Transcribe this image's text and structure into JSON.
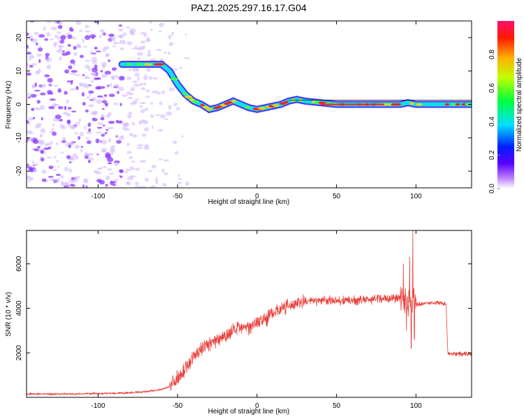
{
  "title": "PAZ1.2025.297.16.17.G04",
  "colors": {
    "snr_line": "#e8403a",
    "ridge_low": "#3a18ff",
    "ridge_mid": "#10e0e0",
    "ridge_high": "#ff2020",
    "noise": "#8a38ff",
    "noise_light": "#d2b4ff",
    "axis": "#000000"
  },
  "chart_data": [
    {
      "type": "heatmap",
      "name": "spectrogram",
      "xlabel": "Height of straight line (km)",
      "ylabel": "Frequency (Hz)",
      "xlim": [
        -145,
        135
      ],
      "ylim": [
        -25,
        25
      ],
      "xticks": [
        -100,
        -50,
        0,
        50,
        100
      ],
      "yticks": [
        -20,
        -10,
        0,
        10,
        20
      ],
      "grid": false,
      "colorbar": {
        "label": "Normalized spectral amplitude",
        "range": [
          0,
          1
        ],
        "ticks": [
          0.0,
          0.2,
          0.4,
          0.6,
          0.8
        ],
        "tick_labels": [
          "0.0",
          "0.2",
          "0.4",
          "0.6",
          "0.8"
        ],
        "placement": "right"
      },
      "ridge": {
        "description": "dominant frequency trace",
        "x": [
          -85,
          -60,
          -55,
          -50,
          -45,
          -40,
          -35,
          -30,
          -25,
          -20,
          -15,
          -10,
          -5,
          0,
          5,
          10,
          15,
          20,
          25,
          30,
          40,
          50,
          60,
          70,
          80,
          90,
          95,
          100,
          110,
          120,
          135
        ],
        "y": [
          12,
          12,
          10,
          6,
          3,
          1,
          0,
          -1.5,
          -1,
          0,
          1,
          0,
          -1,
          -1.5,
          -1,
          -0.5,
          0,
          1,
          1.5,
          1,
          0.5,
          0,
          0,
          0,
          0,
          0,
          0.5,
          0,
          0,
          0,
          0
        ]
      },
      "noise_region": {
        "x_range": [
          -145,
          -55
        ],
        "y_range": [
          -25,
          25
        ]
      }
    },
    {
      "type": "line",
      "name": "snr",
      "xlabel": "Height of straight line (km)",
      "ylabel": "SNR (10 * v/v)",
      "xlim": [
        -145,
        135
      ],
      "ylim": [
        0,
        7500
      ],
      "xticks": [
        -100,
        -50,
        0,
        50,
        100
      ],
      "yticks": [
        2000,
        4000,
        6000
      ],
      "grid": false,
      "series": [
        {
          "name": "SNR",
          "x": [
            -145,
            -120,
            -100,
            -80,
            -70,
            -60,
            -55,
            -50,
            -45,
            -40,
            -35,
            -30,
            -25,
            -20,
            -15,
            -10,
            -5,
            0,
            5,
            10,
            15,
            20,
            25,
            30,
            40,
            50,
            60,
            70,
            80,
            85,
            90,
            95,
            98,
            100,
            105,
            110,
            115,
            119,
            120,
            121,
            125,
            130,
            135
          ],
          "y": [
            150,
            150,
            170,
            200,
            250,
            350,
            500,
            900,
            1300,
            1800,
            2200,
            2400,
            2600,
            2800,
            3000,
            3100,
            3200,
            3400,
            3500,
            3800,
            4000,
            4100,
            4250,
            4300,
            4350,
            4350,
            4350,
            4400,
            4450,
            4450,
            4500,
            4400,
            4300,
            4200,
            4200,
            4250,
            4250,
            4200,
            2000,
            1950,
            1950,
            1950,
            1950
          ],
          "spikes": {
            "x": [
              92,
              94,
              96,
              97,
              98,
              99
            ],
            "y": [
              6000,
              3000,
              6300,
              2200,
              7500,
              2600
            ]
          },
          "noise_amplitude": [
            {
              "x_range": [
                -145,
                -55
              ],
              "amp": 60
            },
            {
              "x_range": [
                -55,
                30
              ],
              "amp": 400
            },
            {
              "x_range": [
                30,
                90
              ],
              "amp": 250
            },
            {
              "x_range": [
                90,
                100
              ],
              "amp": 900
            },
            {
              "x_range": [
                100,
                135
              ],
              "amp": 120
            }
          ]
        }
      ]
    }
  ]
}
